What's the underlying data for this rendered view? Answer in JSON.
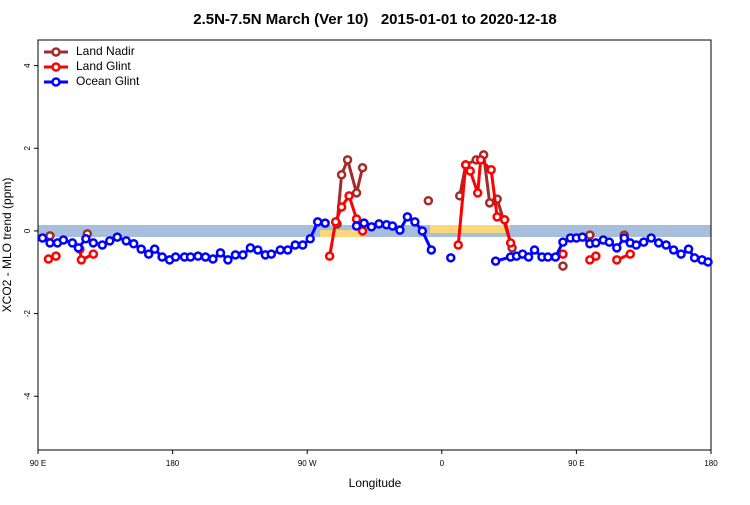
{
  "chart_data": {
    "type": "line",
    "title": "2.5N-7.5N March (Ver 10)   2015-01-01 to 2020-12-18",
    "x_label": "Longitude",
    "y_label": "XCO2 - MLO trend (ppm)",
    "xlim": [
      90,
      540
    ],
    "xticks": [
      {
        "value": 90,
        "label": "90 E"
      },
      {
        "value": 180,
        "label": "180"
      },
      {
        "value": 270,
        "label": "90 W"
      },
      {
        "value": 360,
        "label": "0"
      },
      {
        "value": 450,
        "label": "90 E"
      },
      {
        "value": 540,
        "label": "180"
      }
    ],
    "ylim": [
      -5.3,
      4.62
    ],
    "yticks": [
      -4,
      -2,
      0,
      2,
      4
    ],
    "grid": false,
    "legend": "top-left",
    "series": [
      {
        "name": "Land Nadir",
        "color": "#a52a2a",
        "x": [
          98,
          123,
          290,
          293,
          297,
          303,
          307,
          351,
          372,
          376,
          383,
          388,
          392,
          397,
          407,
          441,
          459,
          482
        ],
        "values": [
          -0.12,
          -0.07,
          0.17,
          1.36,
          1.72,
          0.92,
          1.53,
          0.73,
          0.85,
          1.6,
          1.72,
          1.84,
          0.68,
          0.77,
          -0.41,
          -0.85,
          -0.1,
          -0.1
        ]
      },
      {
        "name": "Land Glint",
        "color": "#ff0000",
        "x": [
          97,
          102,
          118,
          119,
          127,
          285,
          289,
          293,
          298,
          303,
          307,
          371,
          376,
          379,
          384,
          386,
          393,
          397,
          402,
          406,
          441,
          459,
          463,
          477,
          486
        ],
        "values": [
          -0.68,
          -0.61,
          -0.44,
          -0.7,
          -0.56,
          -0.61,
          0.22,
          0.58,
          0.85,
          0.29,
          0,
          -0.34,
          1.6,
          1.45,
          0.92,
          1.72,
          1.48,
          0.34,
          0.27,
          -0.29,
          -0.56,
          -0.7,
          -0.61,
          -0.7,
          -0.56
        ]
      },
      {
        "name": "Ocean Glint",
        "color": "#0000ff",
        "x": [
          93,
          98,
          103,
          107,
          113,
          117,
          122,
          127,
          133,
          138,
          143,
          149,
          154,
          159,
          164,
          168,
          173,
          178,
          182,
          188,
          192,
          197,
          202,
          207,
          212,
          217,
          222,
          227,
          232,
          237,
          242,
          246,
          252,
          257,
          262,
          267,
          272,
          277,
          282,
          303,
          308,
          313,
          318,
          323,
          327,
          332,
          337,
          342,
          347,
          353,
          366,
          396,
          406,
          410,
          414,
          418,
          422,
          427,
          431,
          436,
          441,
          446,
          450,
          454,
          459,
          463,
          468,
          472,
          477,
          482,
          486,
          490,
          495,
          500,
          505,
          510,
          515,
          520,
          525,
          529,
          534,
          538
        ],
        "values": [
          -0.17,
          -0.29,
          -0.29,
          -0.22,
          -0.29,
          -0.41,
          -0.19,
          -0.29,
          -0.34,
          -0.24,
          -0.15,
          -0.24,
          -0.31,
          -0.44,
          -0.56,
          -0.44,
          -0.63,
          -0.7,
          -0.63,
          -0.63,
          -0.63,
          -0.61,
          -0.63,
          -0.68,
          -0.53,
          -0.7,
          -0.58,
          -0.58,
          -0.41,
          -0.46,
          -0.58,
          -0.56,
          -0.46,
          -0.46,
          -0.34,
          -0.34,
          -0.19,
          0.22,
          0.19,
          0.12,
          0.19,
          0.1,
          0.17,
          0.15,
          0.12,
          0.02,
          0.34,
          0.22,
          0,
          -0.46,
          -0.65,
          -0.73,
          -0.63,
          -0.61,
          -0.56,
          -0.63,
          -0.46,
          -0.63,
          -0.63,
          -0.63,
          -0.27,
          -0.17,
          -0.17,
          -0.15,
          -0.31,
          -0.29,
          -0.22,
          -0.27,
          -0.41,
          -0.17,
          -0.29,
          -0.34,
          -0.27,
          -0.17,
          -0.29,
          -0.34,
          -0.46,
          -0.56,
          -0.44,
          -0.65,
          -0.7,
          -0.75
        ]
      }
    ]
  }
}
